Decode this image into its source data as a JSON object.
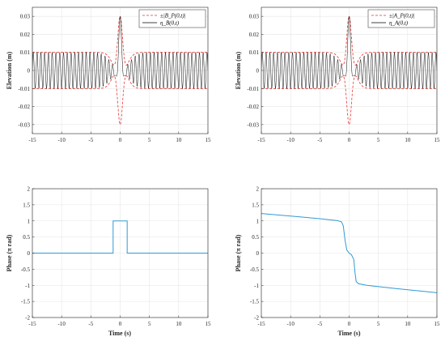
{
  "colors": {
    "envelope": "#e8322e",
    "signal": "#000000",
    "phase": "#2f9bd4",
    "axis": "#262626",
    "grid": "#e6e6e6"
  },
  "chart_data": [
    {
      "id": "tl",
      "type": "line",
      "ylabel": "Elevation (m)",
      "xlabel": "",
      "xlim": [
        -15,
        15
      ],
      "ylim": [
        -0.035,
        0.035
      ],
      "xticks": [
        "-15",
        "-10",
        "-5",
        "0",
        "5",
        "10",
        "15"
      ],
      "yticks": [
        "-0.03",
        "-0.02",
        "-0.01",
        "0",
        "0.01",
        "0.02",
        "0.03"
      ],
      "grid": true,
      "legend_position": "top-right",
      "series": [
        {
          "name": "±|B_P(0,t)|",
          "style": "dashed",
          "kind": "envelope_b"
        },
        {
          "name": "η_B(0,t)",
          "style": "solid",
          "kind": "signal_b"
        }
      ]
    },
    {
      "id": "tr",
      "type": "line",
      "ylabel": "Elevation (m)",
      "xlabel": "",
      "xlim": [
        -15,
        15
      ],
      "ylim": [
        -0.035,
        0.035
      ],
      "xticks": [
        "-15",
        "-10",
        "-5",
        "0",
        "5",
        "10",
        "15"
      ],
      "yticks": [
        "-0.03",
        "-0.02",
        "-0.01",
        "0",
        "0.01",
        "0.02",
        "0.03"
      ],
      "grid": true,
      "legend_position": "top-right",
      "series": [
        {
          "name": "±|A_P(0,t)|",
          "style": "dashed",
          "kind": "envelope_a"
        },
        {
          "name": "η_A(0,t)",
          "style": "solid",
          "kind": "signal_a"
        }
      ]
    },
    {
      "id": "bl",
      "type": "line",
      "ylabel": "Phase (π rad)",
      "xlabel": "",
      "xlim": [
        -15,
        15
      ],
      "ylim": [
        -2,
        2
      ],
      "xticks": [
        "-15",
        "-10",
        "-5",
        "0",
        "5",
        "10",
        "15"
      ],
      "yticks": [
        "-2",
        "-1.5",
        "-1",
        "-0.5",
        "0",
        "0.5",
        "1",
        "1.5",
        "2"
      ],
      "grid": true,
      "series": [
        {
          "name": "",
          "style": "solid",
          "points": [
            [
              -15,
              0
            ],
            [
              -1.2,
              0
            ],
            [
              -1.2,
              1
            ],
            [
              1.2,
              1
            ],
            [
              1.2,
              0
            ],
            [
              15,
              0
            ]
          ]
        }
      ]
    },
    {
      "id": "br",
      "type": "line",
      "ylabel": "Phase (π rad)",
      "xlabel": "Time (s)",
      "xlim": [
        -15,
        15
      ],
      "ylim": [
        -2,
        2
      ],
      "xticks": [
        "-15",
        "-10",
        "-5",
        "0",
        "5",
        "10",
        "15"
      ],
      "yticks": [
        "-2",
        "-1.5",
        "-1",
        "-0.5",
        "0",
        "0.5",
        "1",
        "1.5",
        "2"
      ],
      "grid": true,
      "series": [
        {
          "name": "",
          "style": "solid",
          "points": [
            [
              -15,
              1.23
            ],
            [
              -10,
              1.15
            ],
            [
              -5,
              1.07
            ],
            [
              -2,
              1.01
            ],
            [
              -1.3,
              0.97
            ],
            [
              -1.0,
              0.85
            ],
            [
              -0.7,
              0.4
            ],
            [
              -0.4,
              0.1
            ],
            [
              0,
              0.0
            ],
            [
              0.4,
              -0.05
            ],
            [
              0.8,
              -0.2
            ],
            [
              1.0,
              -0.6
            ],
            [
              1.2,
              -0.88
            ],
            [
              1.6,
              -0.95
            ],
            [
              3,
              -1.0
            ],
            [
              8,
              -1.1
            ],
            [
              15,
              -1.23
            ]
          ]
        }
      ]
    }
  ],
  "bottom_left_xlabel": "Time (s)"
}
